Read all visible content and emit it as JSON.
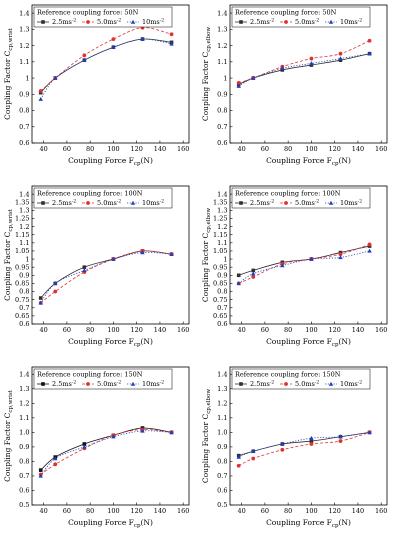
{
  "chart_data": [
    {
      "type": "line",
      "legend_title": "Reference coupling force: 50N",
      "xlabel": "Coupling Force F",
      "xlabel_sub": "cp",
      "xlabel_unit": "(N)",
      "ylabel": "Coupling Factor C",
      "ylabel_sub": "cp,wrist",
      "xlim": [
        30,
        165
      ],
      "ylim": [
        0.6,
        1.45
      ],
      "xticks": [
        40,
        60,
        80,
        100,
        120,
        140,
        160
      ],
      "yticks": [
        0.6,
        0.7,
        0.8,
        0.9,
        1.0,
        1.1,
        1.2,
        1.3,
        1.4
      ],
      "grid": false,
      "legend_position": "top",
      "x": [
        37.5,
        50,
        75,
        100,
        125,
        150
      ],
      "series": [
        {
          "name": "2.5ms",
          "sup": "-2",
          "color": "#303030",
          "marker": "square",
          "dash": "solid",
          "values": [
            0.91,
            1.0,
            1.11,
            1.19,
            1.24,
            1.22
          ]
        },
        {
          "name": "5.0ms",
          "sup": "-2",
          "color": "#e03030",
          "marker": "circle",
          "dash": "dashed",
          "values": [
            0.92,
            1.0,
            1.14,
            1.24,
            1.31,
            1.27
          ]
        },
        {
          "name": "10ms",
          "sup": "-2",
          "color": "#1f3fbf",
          "marker": "triangle",
          "dash": "dotted",
          "values": [
            0.87,
            1.0,
            1.11,
            1.19,
            1.24,
            1.21
          ]
        }
      ]
    },
    {
      "type": "line",
      "legend_title": "Reference coupling force: 50N",
      "xlabel": "Coupling Force F",
      "xlabel_sub": "cp",
      "xlabel_unit": "(N)",
      "ylabel": "Coupling Factor C",
      "ylabel_sub": "cp,elbow",
      "xlim": [
        30,
        165
      ],
      "ylim": [
        0.6,
        1.45
      ],
      "xticks": [
        40,
        60,
        80,
        100,
        120,
        140,
        160
      ],
      "yticks": [
        0.6,
        0.7,
        0.8,
        0.9,
        1.0,
        1.1,
        1.2,
        1.3,
        1.4
      ],
      "grid": false,
      "legend_position": "top",
      "x": [
        37.5,
        50,
        75,
        100,
        125,
        150
      ],
      "series": [
        {
          "name": "2.5ms",
          "sup": "-2",
          "color": "#303030",
          "marker": "square",
          "dash": "solid",
          "values": [
            0.96,
            1.0,
            1.05,
            1.08,
            1.11,
            1.15
          ]
        },
        {
          "name": "5.0ms",
          "sup": "-2",
          "color": "#e03030",
          "marker": "circle",
          "dash": "dashed",
          "values": [
            0.97,
            1.0,
            1.07,
            1.12,
            1.15,
            1.23
          ]
        },
        {
          "name": "10ms",
          "sup": "-2",
          "color": "#1f3fbf",
          "marker": "triangle",
          "dash": "dotted",
          "values": [
            0.95,
            1.0,
            1.06,
            1.09,
            1.12,
            1.15
          ]
        }
      ]
    },
    {
      "type": "line",
      "legend_title": "Reference coupling force: 100N",
      "xlabel": "Coupling Force F",
      "xlabel_sub": "cp",
      "xlabel_unit": "(N)",
      "ylabel": "Coupling Factor C",
      "ylabel_sub": "cp,wrist",
      "xlim": [
        30,
        165
      ],
      "ylim": [
        0.6,
        1.45
      ],
      "xticks": [
        40,
        60,
        80,
        100,
        120,
        140,
        160
      ],
      "yticks": [
        0.6,
        0.65,
        0.7,
        0.75,
        0.8,
        0.85,
        0.9,
        0.95,
        1.0,
        1.05,
        1.1,
        1.15,
        1.2,
        1.25,
        1.3,
        1.35,
        1.4
      ],
      "grid": false,
      "legend_position": "top",
      "x": [
        37.5,
        50,
        75,
        100,
        125,
        150
      ],
      "series": [
        {
          "name": "2.5ms",
          "sup": "-2",
          "color": "#303030",
          "marker": "square",
          "dash": "solid",
          "values": [
            0.76,
            0.85,
            0.95,
            1.0,
            1.05,
            1.03
          ]
        },
        {
          "name": "5.0ms",
          "sup": "-2",
          "color": "#e03030",
          "marker": "circle",
          "dash": "dashed",
          "values": [
            0.73,
            0.8,
            0.92,
            1.0,
            1.05,
            1.03
          ]
        },
        {
          "name": "10ms",
          "sup": "-2",
          "color": "#1f3fbf",
          "marker": "triangle",
          "dash": "dotted",
          "values": [
            0.73,
            0.85,
            0.93,
            1.0,
            1.04,
            1.03
          ]
        }
      ]
    },
    {
      "type": "line",
      "legend_title": "Reference coupling force: 100N",
      "xlabel": "Coupling Force F",
      "xlabel_sub": "cp",
      "xlabel_unit": "(N)",
      "ylabel": "Coupling Factor C",
      "ylabel_sub": "cp,elbow",
      "xlim": [
        30,
        165
      ],
      "ylim": [
        0.6,
        1.45
      ],
      "xticks": [
        40,
        60,
        80,
        100,
        120,
        140,
        160
      ],
      "yticks": [
        0.6,
        0.65,
        0.7,
        0.75,
        0.8,
        0.85,
        0.9,
        0.95,
        1.0,
        1.05,
        1.1,
        1.15,
        1.2,
        1.25,
        1.3,
        1.35,
        1.4
      ],
      "grid": false,
      "legend_position": "top",
      "x": [
        37.5,
        50,
        75,
        100,
        125,
        150
      ],
      "series": [
        {
          "name": "2.5ms",
          "sup": "-2",
          "color": "#303030",
          "marker": "square",
          "dash": "solid",
          "values": [
            0.9,
            0.93,
            0.98,
            1.0,
            1.04,
            1.08
          ]
        },
        {
          "name": "5.0ms",
          "sup": "-2",
          "color": "#e03030",
          "marker": "circle",
          "dash": "dashed",
          "values": [
            0.85,
            0.89,
            0.97,
            1.0,
            1.03,
            1.09
          ]
        },
        {
          "name": "10ms",
          "sup": "-2",
          "color": "#1f3fbf",
          "marker": "triangle",
          "dash": "dotted",
          "values": [
            0.85,
            0.91,
            0.96,
            1.0,
            1.01,
            1.05
          ]
        }
      ]
    },
    {
      "type": "line",
      "legend_title": "Reference coupling force: 150N",
      "xlabel": "Coupling Force F",
      "xlabel_sub": "cp",
      "xlabel_unit": "(N)",
      "ylabel": "Coupling Factor C",
      "ylabel_sub": "cp,wrist",
      "xlim": [
        30,
        165
      ],
      "ylim": [
        0.5,
        1.45
      ],
      "xticks": [
        40,
        60,
        80,
        100,
        120,
        140,
        160
      ],
      "yticks": [
        0.5,
        0.6,
        0.7,
        0.8,
        0.9,
        1.0,
        1.1,
        1.2,
        1.3,
        1.4
      ],
      "ytick_labels": [
        "0.5",
        "0.6",
        "0.7",
        "0.8",
        "0.9",
        "1.0",
        "1.1",
        "1.2",
        "1.3",
        "1.4"
      ],
      "grid": false,
      "legend_position": "top",
      "x": [
        37.5,
        50,
        75,
        100,
        125,
        150
      ],
      "series": [
        {
          "name": "2.5ms",
          "sup": "-2",
          "color": "#101010",
          "marker": "square",
          "dash": "solid",
          "values": [
            0.74,
            0.83,
            0.92,
            0.98,
            1.03,
            1.0
          ]
        },
        {
          "name": "5.0ms",
          "sup": "-2",
          "color": "#e03030",
          "marker": "circle",
          "dash": "dashed",
          "values": [
            0.71,
            0.78,
            0.89,
            0.98,
            1.02,
            1.0
          ]
        },
        {
          "name": "10ms",
          "sup": "-2",
          "color": "#1f3fbf",
          "marker": "triangle",
          "dash": "dotted",
          "values": [
            0.7,
            0.82,
            0.9,
            0.97,
            1.01,
            1.0
          ]
        }
      ]
    },
    {
      "type": "line",
      "legend_title": "Reference coupling force: 150N",
      "xlabel": "Coupling Force F",
      "xlabel_sub": "cp",
      "xlabel_unit": "(N)",
      "ylabel": "Coupling Factor C",
      "ylabel_sub": "cp,elbow",
      "xlim": [
        30,
        165
      ],
      "ylim": [
        0.5,
        1.45
      ],
      "xticks": [
        40,
        60,
        80,
        100,
        120,
        140,
        160
      ],
      "yticks": [
        0.5,
        0.6,
        0.7,
        0.8,
        0.9,
        1.0,
        1.1,
        1.2,
        1.3,
        1.4
      ],
      "ytick_labels": [
        "0.5",
        "0.6",
        "0.7",
        "0.8",
        "0.9",
        "1.0",
        "1.1",
        "1.2",
        "1.3",
        "1.4"
      ],
      "grid": false,
      "legend_position": "top",
      "x": [
        37.5,
        50,
        75,
        100,
        125,
        150
      ],
      "series": [
        {
          "name": "2.5ms",
          "sup": "-2",
          "color": "#303030",
          "marker": "square",
          "dash": "solid",
          "values": [
            0.84,
            0.87,
            0.92,
            0.94,
            0.97,
            1.0
          ]
        },
        {
          "name": "5.0ms",
          "sup": "-2",
          "color": "#e03030",
          "marker": "circle",
          "dash": "dashed",
          "values": [
            0.77,
            0.82,
            0.88,
            0.92,
            0.94,
            1.0
          ]
        },
        {
          "name": "10ms",
          "sup": "-2",
          "color": "#1f3fbf",
          "marker": "triangle",
          "dash": "dotted",
          "values": [
            0.83,
            0.87,
            0.92,
            0.96,
            0.97,
            1.0
          ]
        }
      ]
    }
  ]
}
